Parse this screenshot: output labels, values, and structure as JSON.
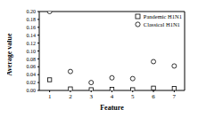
{
  "chart_data": {
    "type": "scatter",
    "x_label": "Feature",
    "y_label": "Average value",
    "x": [
      1,
      2,
      3,
      4,
      5,
      6,
      7
    ],
    "xlim": [
      0.5,
      7.5
    ],
    "xticks": [
      1,
      2,
      3,
      4,
      5,
      6,
      7
    ],
    "ylim": [
      0,
      0.2
    ],
    "yticks": [
      {
        "value": 0,
        "label": "0.00"
      },
      {
        "value": 0.02,
        "label": "0.02"
      },
      {
        "value": 0.04,
        "label": "0.04"
      },
      {
        "value": 0.06,
        "label": "0.06"
      },
      {
        "value": 0.08,
        "label": "0.08"
      },
      {
        "value": 0.1,
        "label": "0.10"
      },
      {
        "value": 0.12,
        "label": "0.12"
      },
      {
        "value": 0.14,
        "label": "0.14"
      },
      {
        "value": 0.16,
        "label": "0.16"
      },
      {
        "value": 0.18,
        "label": "0.18"
      },
      {
        "value": 0.2,
        "label": "0.20"
      }
    ],
    "legend": "top right",
    "series": [
      {
        "name": "Pandemic H1N1",
        "color": "#000000",
        "marker": "square",
        "values": [
          0.027,
          0.004,
          0.002,
          0.003,
          0.002,
          0.006,
          0.005
        ]
      },
      {
        "name": "Classical H1N1",
        "color": "#000000",
        "marker": "circle",
        "values": [
          0.2,
          0.048,
          0.02,
          0.032,
          0.03,
          0.073,
          0.062
        ]
      }
    ]
  }
}
